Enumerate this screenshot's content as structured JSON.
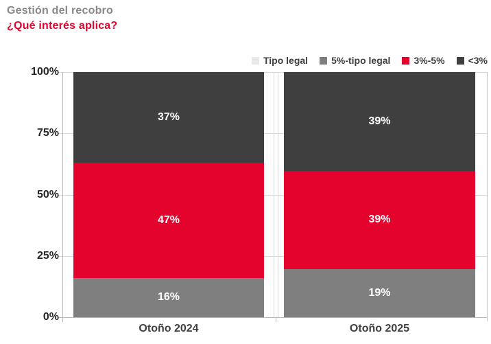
{
  "header": {
    "title": "Gestión del recobro",
    "subtitle": "¿Qué interés aplica?"
  },
  "colors": {
    "title_gray": "#878787",
    "accent_red": "#e4032d",
    "segment_dark": "#3f3f3f",
    "segment_gray": "#7f7f7f",
    "segment_light": "#e8e8e8",
    "gridline": "#d9d9d9",
    "axis": "#b7b7b7",
    "tick_label": "#262626"
  },
  "chart_data": {
    "type": "bar",
    "stacked": true,
    "title": "Gestión del recobro — ¿Qué interés aplica?",
    "categories": [
      "Otoño 2024",
      "Otoño 2025"
    ],
    "series": [
      {
        "name": "Tipo legal",
        "color": "#e8e8e8",
        "values": [
          0,
          0
        ]
      },
      {
        "name": "5%-tipo legal",
        "color": "#7f7f7f",
        "values": [
          16,
          19
        ]
      },
      {
        "name": "3%-5%",
        "color": "#e4032d",
        "values": [
          47,
          39
        ]
      },
      {
        "name": "<3%",
        "color": "#3f3f3f",
        "values": [
          37,
          39
        ]
      }
    ],
    "value_suffix": "%",
    "y_ticks": [
      "100%",
      "75%",
      "50%",
      "25%",
      "0%"
    ],
    "ylim": [
      0,
      100
    ],
    "grid": true,
    "legend_position": "top-right"
  }
}
